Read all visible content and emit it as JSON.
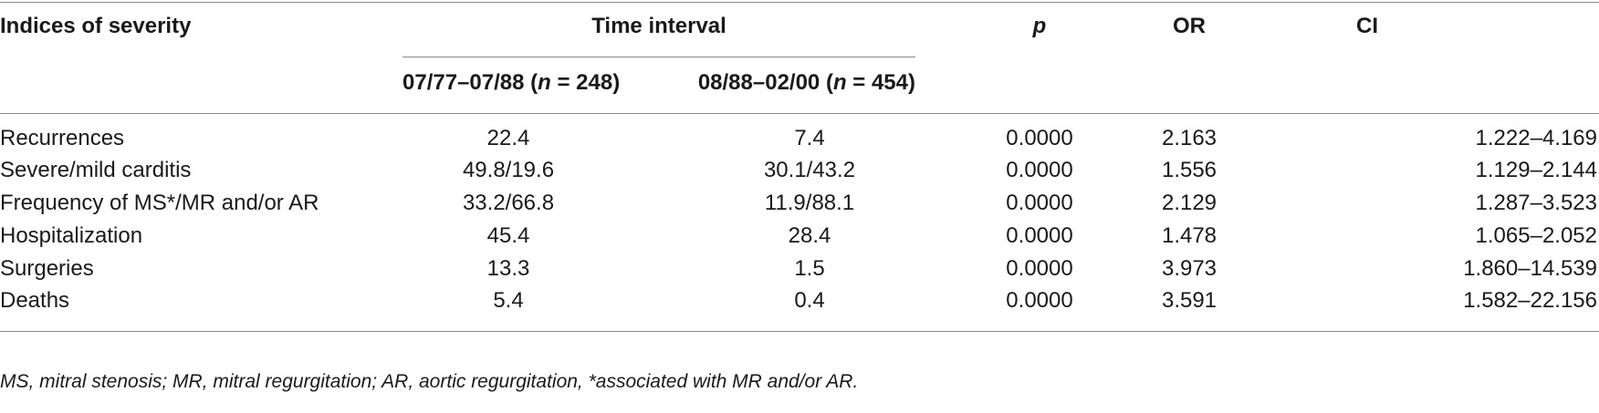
{
  "table": {
    "headers": {
      "indices": "Indices of severity",
      "time_interval": "Time interval",
      "p": "p",
      "or": "OR",
      "ci": "CI",
      "period1_prefix": "07/77–07/88 (",
      "period1_n": "n",
      "period1_suffix": " = 248)",
      "period2_prefix": "08/88–02/00 (",
      "period2_n": "n",
      "period2_suffix": " = 454)"
    },
    "rows": [
      {
        "index": "Recurrences",
        "period1": "22.4",
        "period2": "7.4",
        "p": "0.0000",
        "or": "2.163",
        "ci": "1.222–4.169"
      },
      {
        "index": "Severe/mild carditis",
        "period1": "49.8/19.6",
        "period2": "30.1/43.2",
        "p": "0.0000",
        "or": "1.556",
        "ci": "1.129–2.144"
      },
      {
        "index": "Frequency of MS*/MR and/or AR",
        "period1": "33.2/66.8",
        "period2": "11.9/88.1",
        "p": "0.0000",
        "or": "2.129",
        "ci": "1.287–3.523"
      },
      {
        "index": "Hospitalization",
        "period1": "45.4",
        "period2": "28.4",
        "p": "0.0000",
        "or": "1.478",
        "ci": "1.065–2.052"
      },
      {
        "index": "Surgeries",
        "period1": "13.3",
        "period2": "1.5",
        "p": "0.0000",
        "or": "3.973",
        "ci": "1.860–14.539"
      },
      {
        "index": "Deaths",
        "period1": "5.4",
        "period2": "0.4",
        "p": "0.0000",
        "or": "3.591",
        "ci": "1.582–22.156"
      }
    ],
    "footnote": "MS, mitral stenosis; MR, mitral regurgitation; AR, aortic regurgitation, *associated with MR and/or AR."
  }
}
